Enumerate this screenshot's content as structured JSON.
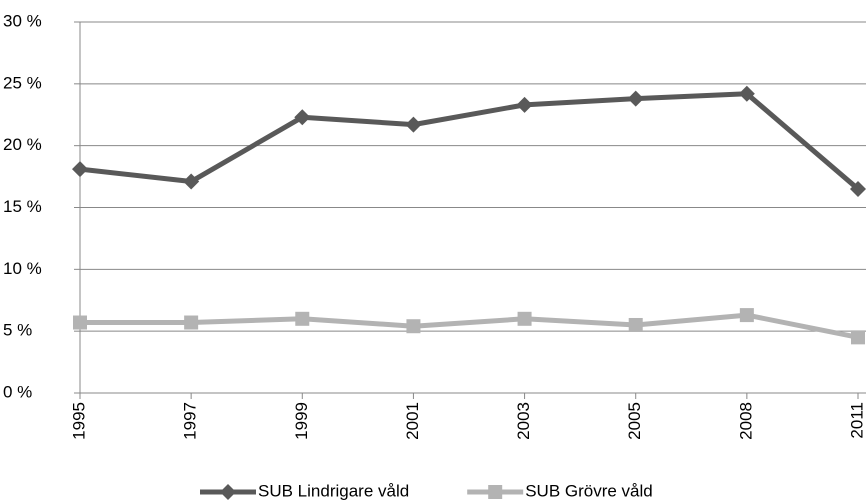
{
  "chart_data": {
    "type": "line",
    "categories": [
      "1995",
      "1997",
      "1999",
      "2001",
      "2003",
      "2005",
      "2008",
      "2011"
    ],
    "series": [
      {
        "name": "SUB Lindrigare våld",
        "color": "#595959",
        "marker": "diamond",
        "values": [
          18.1,
          17.1,
          22.3,
          21.7,
          23.3,
          23.8,
          24.2,
          16.5
        ]
      },
      {
        "name": "SUB Grövre våld",
        "color": "#b3b3b3",
        "marker": "square",
        "values": [
          5.7,
          5.7,
          6.0,
          5.4,
          6.0,
          5.5,
          6.3,
          4.5
        ]
      }
    ],
    "ylim": [
      0,
      30
    ],
    "yticks": [
      {
        "value": 0,
        "label": "0 %"
      },
      {
        "value": 5,
        "label": "5 %"
      },
      {
        "value": 10,
        "label": "10 %"
      },
      {
        "value": 15,
        "label": "15 %"
      },
      {
        "value": 20,
        "label": "20 %"
      },
      {
        "value": 25,
        "label": "25 %"
      },
      {
        "value": 30,
        "label": "30 %"
      }
    ],
    "grid": true,
    "legend": "bottom"
  }
}
